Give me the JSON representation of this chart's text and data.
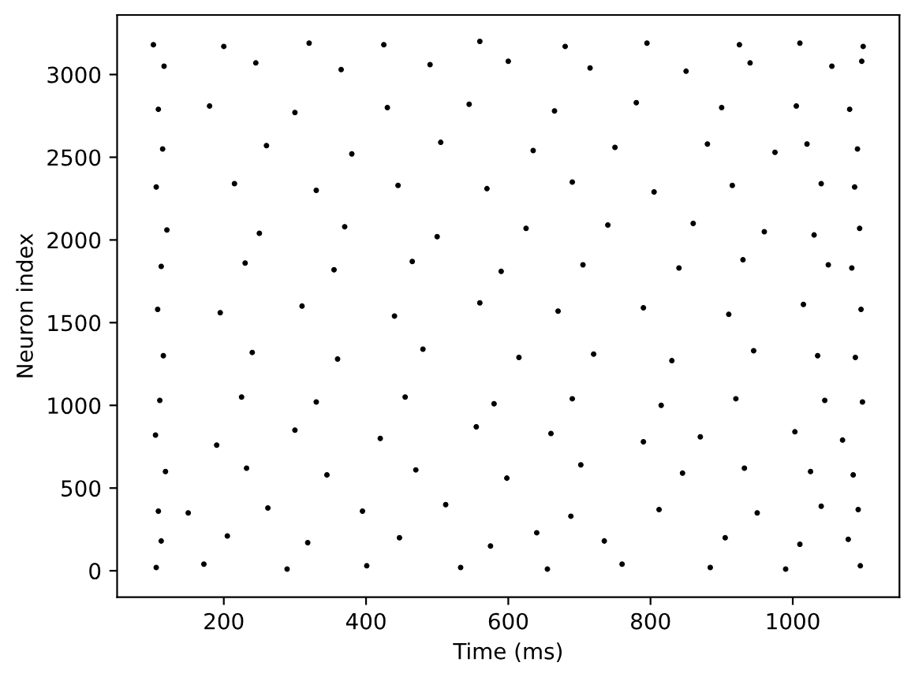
{
  "chart_data": {
    "type": "scatter",
    "xlabel": "Time (ms)",
    "ylabel": "Neuron index",
    "xlim": [
      50,
      1150
    ],
    "ylim": [
      -160,
      3360
    ],
    "xticks": [
      200,
      400,
      600,
      800,
      1000
    ],
    "yticks": [
      0,
      500,
      1000,
      1500,
      2000,
      2500,
      3000
    ],
    "marker": "circle",
    "series": [
      {
        "color": "#000000",
        "x": [
          105,
          172,
          289,
          401,
          533,
          655,
          760,
          884,
          990,
          1095,
          112,
          205,
          318,
          447,
          575,
          640,
          735,
          905,
          1010,
          1078,
          108,
          150,
          262,
          395,
          512,
          688,
          812,
          950,
          1040,
          1092,
          118,
          232,
          345,
          470,
          598,
          702,
          845,
          932,
          1025,
          1085,
          104,
          190,
          300,
          420,
          555,
          660,
          790,
          870,
          1003,
          1070,
          110,
          225,
          330,
          455,
          580,
          690,
          815,
          920,
          1045,
          1098,
          115,
          240,
          360,
          480,
          615,
          720,
          830,
          945,
          1035,
          1088,
          107,
          195,
          310,
          440,
          560,
          670,
          790,
          910,
          1015,
          1096,
          112,
          230,
          355,
          465,
          590,
          705,
          840,
          930,
          1050,
          1083,
          120,
          250,
          370,
          500,
          625,
          740,
          860,
          960,
          1030,
          1094,
          105,
          215,
          330,
          445,
          570,
          690,
          805,
          915,
          1040,
          1087,
          114,
          260,
          380,
          505,
          635,
          750,
          880,
          975,
          1020,
          1091,
          108,
          180,
          300,
          430,
          545,
          665,
          780,
          900,
          1005,
          1080,
          116,
          245,
          365,
          490,
          600,
          715,
          850,
          940,
          1055,
          1097,
          101,
          200,
          320,
          425,
          560,
          680,
          795,
          925,
          1010,
          1099
        ],
        "values": [
          20,
          40,
          10,
          30,
          20,
          10,
          40,
          20,
          10,
          30,
          180,
          210,
          170,
          200,
          150,
          230,
          180,
          200,
          160,
          190,
          360,
          350,
          380,
          360,
          400,
          330,
          370,
          350,
          390,
          370,
          600,
          620,
          580,
          610,
          560,
          640,
          590,
          620,
          600,
          580,
          820,
          760,
          850,
          800,
          870,
          830,
          780,
          810,
          840,
          790,
          1030,
          1050,
          1020,
          1050,
          1010,
          1040,
          1000,
          1040,
          1030,
          1020,
          1300,
          1320,
          1280,
          1340,
          1290,
          1310,
          1270,
          1330,
          1300,
          1290,
          1580,
          1560,
          1600,
          1540,
          1620,
          1570,
          1590,
          1550,
          1610,
          1580,
          1840,
          1860,
          1820,
          1870,
          1810,
          1850,
          1830,
          1880,
          1850,
          1830,
          2060,
          2040,
          2080,
          2020,
          2070,
          2090,
          2100,
          2050,
          2030,
          2070,
          2320,
          2340,
          2300,
          2330,
          2310,
          2350,
          2290,
          2330,
          2340,
          2320,
          2550,
          2570,
          2520,
          2590,
          2540,
          2560,
          2580,
          2530,
          2580,
          2550,
          2790,
          2810,
          2770,
          2800,
          2820,
          2780,
          2830,
          2800,
          2810,
          2790,
          3050,
          3070,
          3030,
          3060,
          3080,
          3040,
          3020,
          3070,
          3050,
          3080,
          3180,
          3170,
          3190,
          3180,
          3200,
          3170,
          3190,
          3180,
          3190,
          3170
        ]
      }
    ]
  }
}
